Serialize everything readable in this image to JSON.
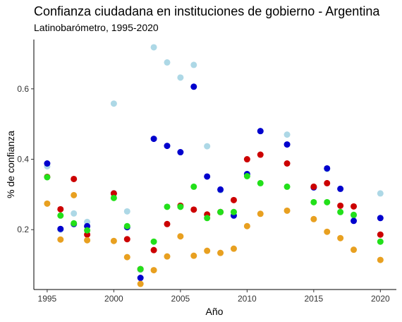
{
  "chart_data": {
    "type": "scatter",
    "title": "Confianza ciudadana en instituciones de gobierno - Argentina",
    "subtitle": "Latinobarómetro, 1995-2020",
    "xlabel": "Año",
    "ylabel": "% de confianza",
    "xlim": [
      1994,
      2021.2
    ],
    "ylim": [
      0.03,
      0.74
    ],
    "xticks": [
      1995,
      2000,
      2005,
      2010,
      2015,
      2020
    ],
    "yticks": [
      0.2,
      0.4,
      0.6
    ],
    "ytick_labels": [
      "0.2",
      "0.4",
      "0.6"
    ],
    "grid": false,
    "legend": "none",
    "series": [
      {
        "color": "#add8e6",
        "x": [
          1995,
          1996,
          1997,
          1998,
          2000,
          2001,
          2002,
          2003,
          2004,
          2005,
          2006,
          2007,
          2008,
          2009,
          2010,
          2011,
          2013,
          2015,
          2016,
          2017,
          2018,
          2020
        ],
        "y": [
          0.38,
          0.2,
          0.246,
          0.222,
          0.558,
          0.252,
          0.086,
          0.718,
          0.675,
          0.632,
          0.668,
          0.437,
          0.312,
          0.25,
          0.355,
          0.48,
          0.47,
          0.322,
          0.372,
          0.316,
          0.24,
          0.303
        ]
      },
      {
        "color": "#0000cd",
        "x": [
          1995,
          1996,
          1997,
          1998,
          2000,
          2001,
          2002,
          2003,
          2004,
          2005,
          2006,
          2007,
          2008,
          2009,
          2010,
          2011,
          2013,
          2015,
          2016,
          2017,
          2018,
          2020
        ],
        "y": [
          0.388,
          0.202,
          0.216,
          0.21,
          0.303,
          0.207,
          0.063,
          0.458,
          0.438,
          0.42,
          0.606,
          0.351,
          0.314,
          0.24,
          0.358,
          0.48,
          0.442,
          0.32,
          0.374,
          0.316,
          0.225,
          0.233
        ]
      },
      {
        "color": "#cc0000",
        "x": [
          1995,
          1996,
          1997,
          1998,
          2000,
          2001,
          2002,
          2003,
          2004,
          2005,
          2006,
          2007,
          2008,
          2009,
          2010,
          2011,
          2013,
          2015,
          2016,
          2017,
          2018,
          2020
        ],
        "y": [
          0.35,
          0.258,
          0.344,
          0.186,
          0.303,
          0.173,
          0.088,
          0.142,
          0.216,
          0.268,
          0.257,
          0.243,
          0.25,
          0.284,
          0.4,
          0.413,
          0.388,
          0.322,
          0.332,
          0.268,
          0.266,
          0.186
        ]
      },
      {
        "color": "#22e01a",
        "x": [
          1995,
          1996,
          1997,
          1998,
          2000,
          2001,
          2002,
          2003,
          2004,
          2005,
          2006,
          2007,
          2008,
          2009,
          2010,
          2011,
          2013,
          2015,
          2016,
          2017,
          2018,
          2020
        ],
        "y": [
          0.349,
          0.24,
          0.218,
          0.198,
          0.29,
          0.21,
          0.088,
          0.166,
          0.265,
          0.265,
          0.322,
          0.233,
          0.25,
          0.25,
          0.352,
          0.332,
          0.322,
          0.278,
          0.278,
          0.25,
          0.242,
          0.166
        ]
      },
      {
        "color": "#e8a020",
        "x": [
          1995,
          1996,
          1997,
          1998,
          2000,
          2001,
          2002,
          2003,
          2004,
          2005,
          2006,
          2007,
          2008,
          2009,
          2010,
          2011,
          2013,
          2015,
          2016,
          2017,
          2018,
          2020
        ],
        "y": [
          0.274,
          0.172,
          0.298,
          0.17,
          0.168,
          0.122,
          0.046,
          0.085,
          0.124,
          0.181,
          0.126,
          0.14,
          0.134,
          0.146,
          0.21,
          0.245,
          0.254,
          0.23,
          0.194,
          0.176,
          0.143,
          0.114
        ]
      }
    ]
  }
}
